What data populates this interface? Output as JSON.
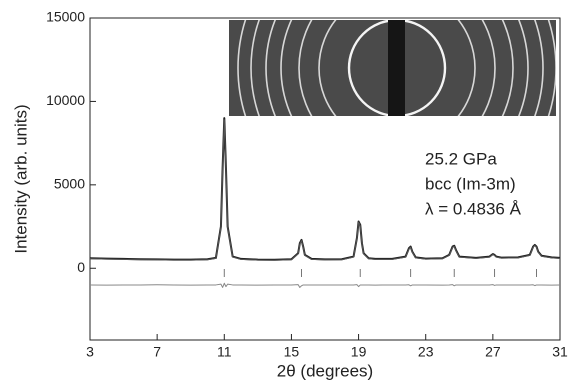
{
  "chart_data": {
    "type": "line",
    "x_label": "2θ (degrees)",
    "y_label": "Intensity (arb. units)",
    "annotations": [
      "25.2 GPa",
      "bcc (Im-3m)",
      "λ = 0.4836 Å"
    ],
    "xlim": [
      3,
      31
    ],
    "xticks": [
      3,
      7,
      11,
      15,
      19,
      23,
      27,
      31
    ],
    "ylim": [
      -4300,
      15000
    ],
    "yticks": [
      0,
      5000,
      10000,
      15000
    ],
    "x": [
      3,
      4,
      5,
      6,
      7,
      8,
      9,
      10,
      10.5,
      10.8,
      10.9,
      11.0,
      11.1,
      11.2,
      11.5,
      12,
      13,
      14,
      15,
      15.4,
      15.5,
      15.6,
      15.7,
      15.8,
      16.2,
      17,
      18,
      18.7,
      18.9,
      19.0,
      19.1,
      19.2,
      19.3,
      19.6,
      20,
      21,
      21.8,
      22.0,
      22.1,
      22.2,
      22.4,
      23,
      24,
      24.4,
      24.6,
      24.7,
      24.8,
      25.0,
      26,
      26.8,
      27.0,
      27.1,
      27.2,
      27.5,
      28.5,
      29.2,
      29.4,
      29.5,
      29.6,
      29.7,
      29.9,
      30.5,
      31
    ],
    "series": [
      {
        "color": "#222222",
        "values": [
          600,
          580,
          560,
          540,
          530,
          520,
          520,
          540,
          620,
          2500,
          6000,
          9000,
          6000,
          2500,
          700,
          560,
          520,
          510,
          540,
          900,
          1500,
          1700,
          1300,
          800,
          560,
          530,
          540,
          700,
          1800,
          2800,
          2600,
          1500,
          900,
          600,
          560,
          560,
          700,
          1200,
          1300,
          1000,
          650,
          580,
          600,
          800,
          1300,
          1350,
          1100,
          700,
          620,
          700,
          850,
          800,
          700,
          640,
          650,
          800,
          1300,
          1400,
          1300,
          1000,
          750,
          650,
          620
        ]
      },
      {
        "color": "#555555",
        "values": [
          570,
          550,
          530,
          510,
          500,
          490,
          490,
          510,
          590,
          2450,
          5950,
          8900,
          5950,
          2450,
          670,
          530,
          490,
          480,
          510,
          870,
          1450,
          1650,
          1260,
          770,
          530,
          500,
          510,
          670,
          1760,
          2760,
          2550,
          1460,
          870,
          570,
          530,
          530,
          670,
          1160,
          1260,
          970,
          620,
          550,
          570,
          770,
          1260,
          1310,
          1060,
          670,
          590,
          670,
          820,
          770,
          670,
          610,
          620,
          770,
          1260,
          1360,
          1260,
          970,
          720,
          620,
          590
        ]
      },
      {
        "color": "#888888",
        "values": [
          -1000,
          -1010,
          -1000,
          -1000,
          -990,
          -1000,
          -1010,
          -1000,
          -1000,
          -950,
          -1150,
          -900,
          -1100,
          -950,
          -1000,
          -1000,
          -1010,
          -1000,
          -1000,
          -980,
          -1150,
          -1050,
          -1000,
          -1000,
          -1000,
          -1000,
          -1000,
          -1000,
          -980,
          -1100,
          -1000,
          -1000,
          -1000,
          -1000,
          -1010,
          -1000,
          -1000,
          -990,
          -1050,
          -1000,
          -1000,
          -1000,
          -1010,
          -1000,
          -980,
          -1050,
          -1000,
          -1000,
          -1000,
          -1000,
          -980,
          -1030,
          -1000,
          -1000,
          -1000,
          -1000,
          -990,
          -1040,
          -1000,
          -1000,
          -1000,
          -1010,
          -1000
        ]
      }
    ],
    "reflections": [
      11.0,
      15.6,
      19.1,
      22.1,
      24.7,
      27.1,
      29.6
    ]
  }
}
